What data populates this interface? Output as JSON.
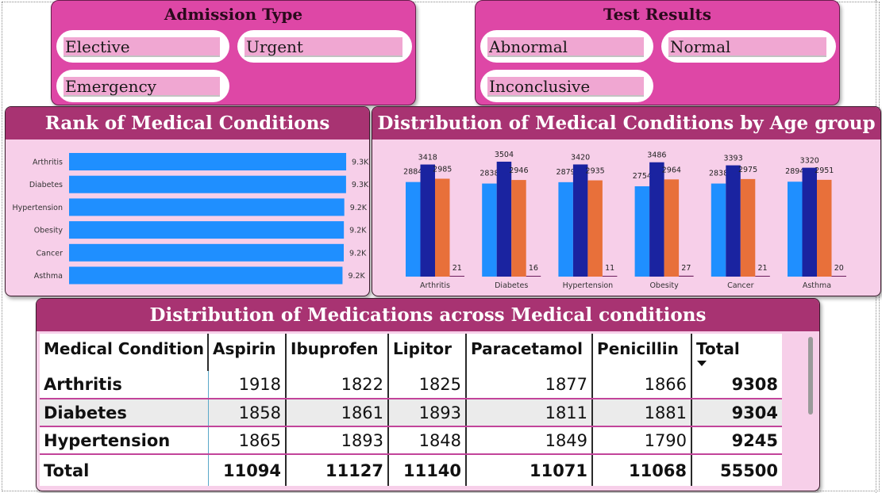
{
  "admission_slicer": {
    "title": "Admission Type",
    "options": [
      "Elective",
      "Urgent",
      "Emergency"
    ]
  },
  "test_slicer": {
    "title": "Test Results",
    "options": [
      "Abnormal",
      "Normal",
      "Inconclusive"
    ]
  },
  "rank_panel": {
    "title": "Rank of Medical Conditions"
  },
  "age_panel": {
    "title": "Distribution of Medical Conditions by Age group"
  },
  "medication_panel": {
    "title": "Distribution of Medications across Medical conditions",
    "columns": [
      "Medical Condition",
      "Aspirin",
      "Ibuprofen",
      "Lipitor",
      "Paracetamol",
      "Penicillin",
      "Total"
    ],
    "rows": [
      {
        "condition": "Arthritis",
        "values": [
          "1918",
          "1822",
          "1825",
          "1877",
          "1866"
        ],
        "total": "9308"
      },
      {
        "condition": "Diabetes",
        "values": [
          "1858",
          "1861",
          "1893",
          "1811",
          "1881"
        ],
        "total": "9304"
      },
      {
        "condition": "Hypertension",
        "values": [
          "1865",
          "1893",
          "1848",
          "1849",
          "1790"
        ],
        "total": "9245"
      }
    ],
    "total_row": {
      "label": "Total",
      "values": [
        "11094",
        "11127",
        "11140",
        "11071",
        "11068"
      ],
      "total": "55500"
    },
    "sort_icon": "sort-descending-icon"
  },
  "chart_data": [
    {
      "type": "bar",
      "orientation": "horizontal",
      "categories": [
        "Arthritis",
        "Diabetes",
        "Hypertension",
        "Obesity",
        "Cancer",
        "Asthma"
      ],
      "values": [
        9308,
        9304,
        9245,
        9231,
        9227,
        9185
      ],
      "data_labels": [
        "9.3K",
        "9.3K",
        "9.2K",
        "9.2K",
        "9.2K",
        "9.2K"
      ],
      "color": "#1f8fff",
      "xlim": [
        0,
        9600
      ]
    },
    {
      "type": "bar",
      "orientation": "vertical",
      "categories": [
        "Arthritis",
        "Diabetes",
        "Hypertension",
        "Obesity",
        "Cancer",
        "Asthma"
      ],
      "series": [
        {
          "values": [
            2884,
            2838,
            2879,
            2754,
            2838,
            2894
          ],
          "color": "#1f8fff"
        },
        {
          "values": [
            3418,
            3504,
            3420,
            3486,
            3393,
            3320
          ],
          "color": "#1a23a0"
        },
        {
          "values": [
            2985,
            2946,
            2935,
            2964,
            2975,
            2951
          ],
          "color": "#e8703a"
        },
        {
          "values": [
            21,
            16,
            11,
            27,
            21,
            20
          ],
          "color": "#6b1d5c"
        }
      ],
      "ylim": [
        0,
        3504
      ],
      "grid": false
    }
  ]
}
